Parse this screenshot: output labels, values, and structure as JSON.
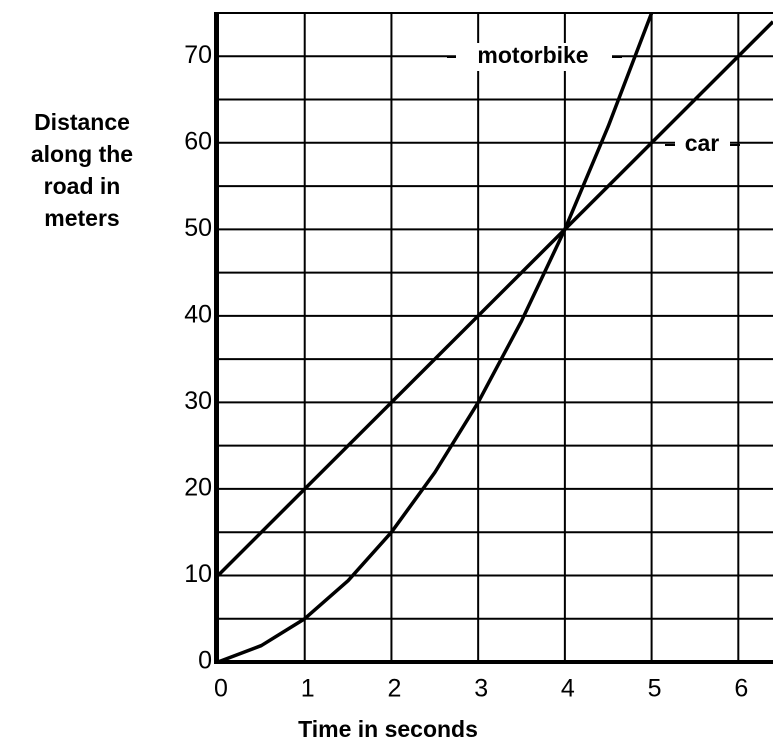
{
  "chart_data": {
    "type": "line",
    "xlabel": "Time in seconds",
    "ylabel": [
      "Distance",
      "along the",
      "road in",
      "meters"
    ],
    "xlim": [
      0,
      6.4
    ],
    "ylim": [
      0,
      75
    ],
    "xticks": [
      0,
      1,
      2,
      3,
      4,
      5,
      6
    ],
    "yticks": [
      0,
      10,
      20,
      30,
      40,
      50,
      60,
      70
    ],
    "minor_yticks": [
      5,
      15,
      25,
      35,
      45,
      55,
      65
    ],
    "grid": true,
    "series": [
      {
        "name": "motorbike",
        "color": "#000000",
        "x": [
          0,
          0.5,
          1,
          1.5,
          2,
          2.5,
          3,
          3.5,
          4,
          4.5,
          5
        ],
        "values": [
          0,
          1.9,
          5,
          9.4,
          15,
          21.9,
          30,
          39.4,
          50,
          61.9,
          75
        ]
      },
      {
        "name": "car",
        "color": "#000000",
        "x": [
          0,
          6.4
        ],
        "values": [
          10,
          74
        ]
      }
    ]
  }
}
